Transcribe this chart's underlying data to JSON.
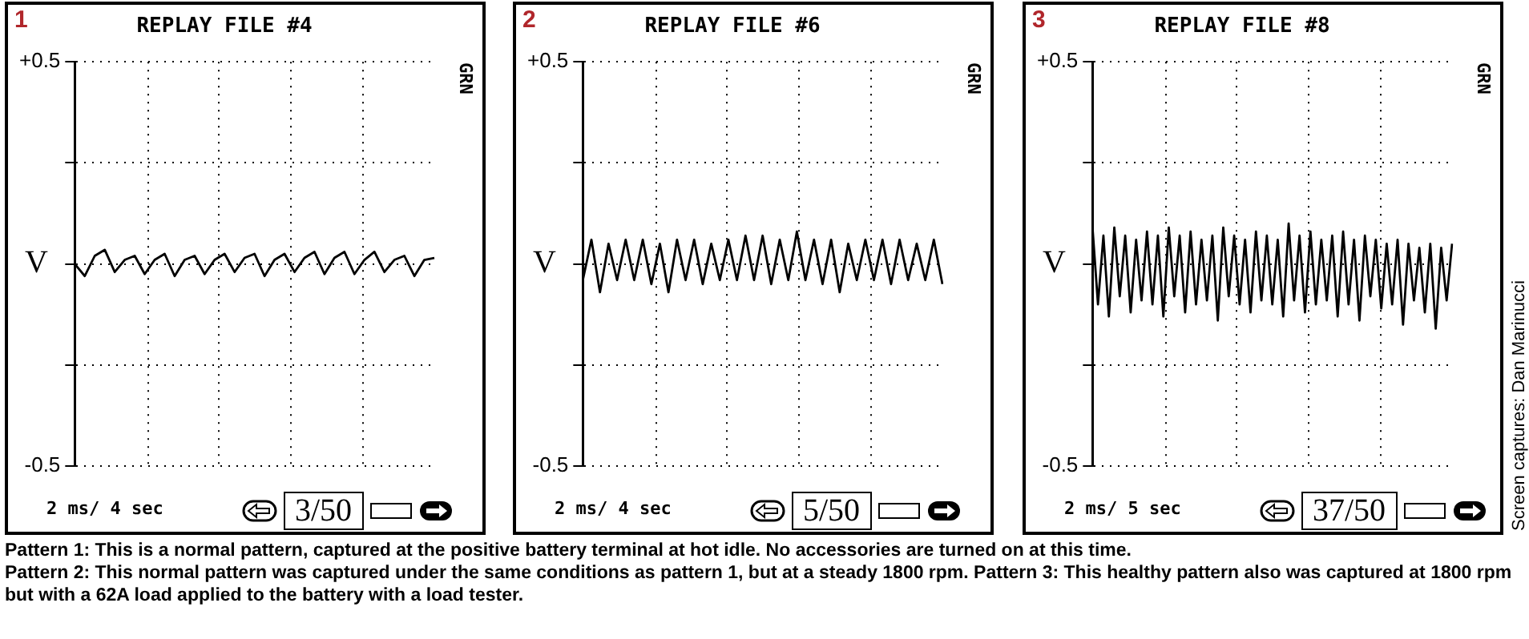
{
  "chart_data": [
    {
      "type": "line",
      "title": "REPLAY FILE #4",
      "ylabel": "V",
      "categories": [
        null,
        null,
        null,
        null,
        null,
        null,
        null,
        null,
        null,
        null,
        null,
        null,
        null,
        null,
        null,
        null,
        null,
        null,
        null,
        null,
        null,
        null,
        null,
        null,
        null,
        null,
        null,
        null,
        null,
        null,
        null,
        null,
        null,
        null,
        null,
        null,
        null
      ],
      "ylim": [
        -0.5,
        0.5
      ],
      "yticks": [
        {
          "value": 0.5,
          "label": "+0.5"
        },
        {
          "value": 0.25,
          "label": null
        },
        {
          "value": 0,
          "label": null
        },
        {
          "value": -0.25,
          "label": null
        },
        {
          "value": -0.5,
          "label": "-0.5"
        }
      ],
      "tick_labels": "y",
      "grid": true,
      "marker": "none",
      "line_style": "solid",
      "annotations": [
        "1",
        "GRN",
        "2 ms/ 4 sec",
        "3/50",
        "Pattern 1: This is a normal pattern, captured at the positive battery terminal at hot idle. No accessories are turned on at this time.",
        "Pattern 2: This normal pattern was captured under the same conditions as pattern 1, but at a steady 1800 rpm. Pattern 3: This healthy pattern also was captured at 1800 rpm but with a 62A load applied to the battery with a load tester."
      ],
      "series": [
        {
          "color": "#000000",
          "values": [
            0.0,
            -0.03,
            0.02,
            0.035,
            -0.02,
            0.01,
            0.02,
            -0.025,
            0.01,
            0.025,
            -0.03,
            0.01,
            0.02,
            -0.025,
            0.01,
            0.025,
            -0.02,
            0.015,
            0.025,
            -0.03,
            0.01,
            0.025,
            -0.02,
            0.015,
            0.03,
            -0.025,
            0.015,
            0.03,
            -0.025,
            0.01,
            0.03,
            -0.02,
            0.01,
            0.02,
            -0.03,
            0.01,
            0.015
          ]
        }
      ]
    },
    {
      "type": "line",
      "title": "REPLAY FILE #6",
      "ylabel": "V",
      "categories": [
        null,
        null,
        null,
        null,
        null,
        null,
        null,
        null,
        null,
        null,
        null,
        null,
        null,
        null,
        null,
        null,
        null,
        null,
        null,
        null,
        null,
        null,
        null,
        null,
        null,
        null,
        null,
        null,
        null,
        null,
        null,
        null,
        null,
        null,
        null,
        null,
        null,
        null,
        null,
        null,
        null,
        null,
        null
      ],
      "ylim": [
        -0.5,
        0.5
      ],
      "yticks": [
        {
          "value": 0.5,
          "label": "+0.5"
        },
        {
          "value": 0.25,
          "label": null
        },
        {
          "value": 0,
          "label": null
        },
        {
          "value": -0.25,
          "label": null
        },
        {
          "value": -0.5,
          "label": "-0.5"
        }
      ],
      "tick_labels": "y",
      "grid": true,
      "marker": "none",
      "line_style": "solid",
      "annotations": [
        "2",
        "GRN",
        "2 ms/ 4 sec",
        "5/50"
      ],
      "series": [
        {
          "color": "#000000",
          "values": [
            -0.04,
            0.06,
            -0.07,
            0.05,
            -0.04,
            0.06,
            -0.04,
            0.06,
            -0.05,
            0.05,
            -0.07,
            0.06,
            -0.04,
            0.06,
            -0.05,
            0.05,
            -0.04,
            0.06,
            -0.04,
            0.07,
            -0.04,
            0.07,
            -0.05,
            0.06,
            -0.04,
            0.08,
            -0.04,
            0.06,
            -0.05,
            0.06,
            -0.07,
            0.05,
            -0.04,
            0.06,
            -0.04,
            0.06,
            -0.05,
            0.06,
            -0.04,
            0.05,
            -0.04,
            0.06,
            -0.05
          ]
        }
      ]
    },
    {
      "type": "line",
      "title": "REPLAY FILE #8",
      "ylabel": "V",
      "categories": [
        null,
        null,
        null,
        null,
        null,
        null,
        null,
        null,
        null,
        null,
        null,
        null,
        null,
        null,
        null,
        null,
        null,
        null,
        null,
        null,
        null,
        null,
        null,
        null,
        null,
        null,
        null,
        null,
        null,
        null,
        null,
        null,
        null,
        null,
        null,
        null,
        null,
        null,
        null,
        null,
        null,
        null,
        null,
        null,
        null,
        null,
        null,
        null,
        null,
        null,
        null,
        null,
        null,
        null,
        null,
        null,
        null,
        null,
        null,
        null,
        null,
        null,
        null,
        null,
        null,
        null,
        null
      ],
      "ylim": [
        -0.5,
        0.5
      ],
      "yticks": [
        {
          "value": 0.5,
          "label": "+0.5"
        },
        {
          "value": 0.25,
          "label": null
        },
        {
          "value": 0,
          "label": null
        },
        {
          "value": -0.25,
          "label": null
        },
        {
          "value": -0.5,
          "label": "-0.5"
        }
      ],
      "tick_labels": "y",
      "grid": true,
      "marker": "none",
      "line_style": "solid",
      "annotations": [
        "3",
        "GRN",
        "2 ms/ 5 sec",
        "37/50",
        "Screen captures: Dan Marinucci"
      ],
      "series": [
        {
          "color": "#000000",
          "values": [
            0.09,
            -0.1,
            0.07,
            -0.13,
            0.09,
            -0.08,
            0.07,
            -0.12,
            0.06,
            -0.09,
            0.08,
            -0.1,
            0.07,
            -0.13,
            0.09,
            -0.08,
            0.07,
            -0.12,
            0.08,
            -0.1,
            0.06,
            -0.09,
            0.07,
            -0.14,
            0.09,
            -0.08,
            0.07,
            -0.1,
            0.06,
            -0.12,
            0.08,
            -0.09,
            0.07,
            -0.1,
            0.06,
            -0.13,
            0.1,
            -0.09,
            0.07,
            -0.12,
            0.08,
            -0.1,
            0.06,
            -0.09,
            0.07,
            -0.13,
            0.08,
            -0.1,
            0.06,
            -0.14,
            0.07,
            -0.08,
            0.06,
            -0.11,
            0.05,
            -0.1,
            0.06,
            -0.15,
            0.05,
            -0.09,
            0.04,
            -0.12,
            0.05,
            -0.16,
            0.04,
            -0.09,
            0.05
          ]
        }
      ]
    }
  ]
}
